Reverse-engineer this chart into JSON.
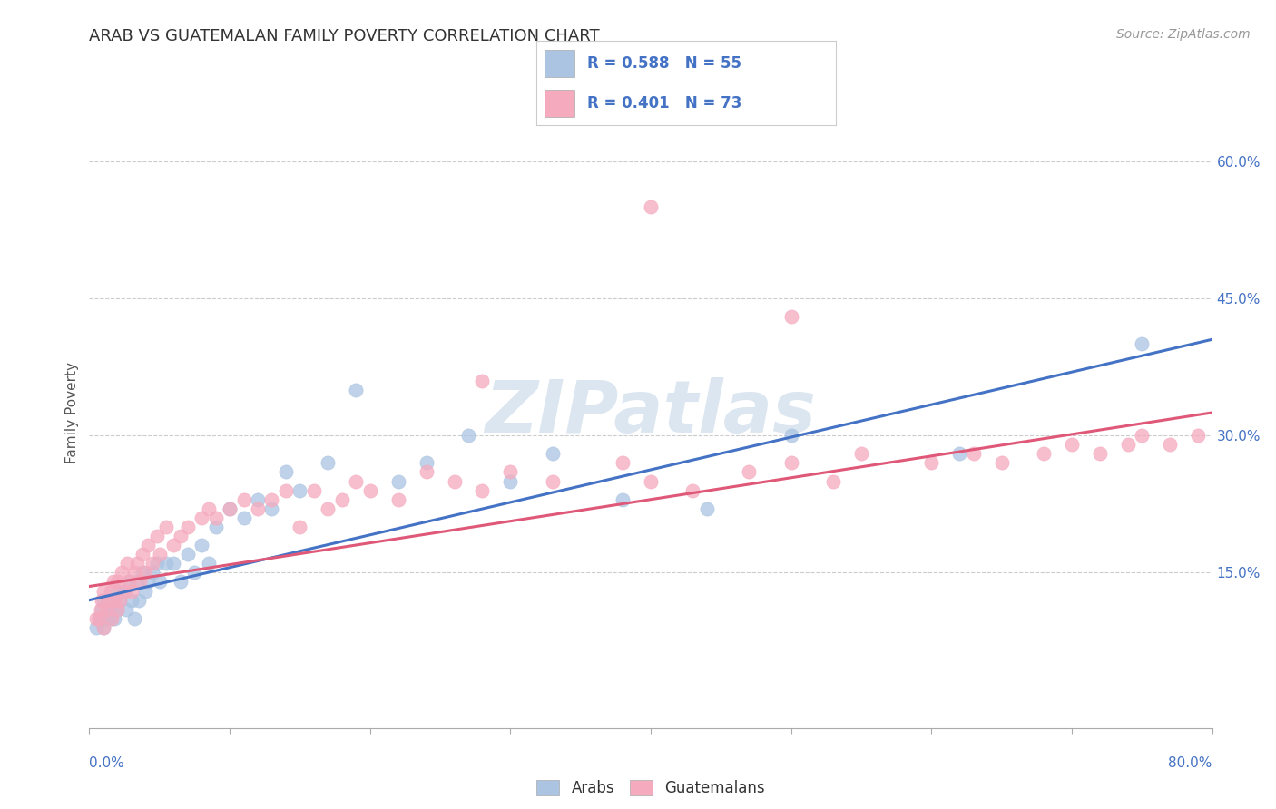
{
  "title": "ARAB VS GUATEMALAN FAMILY POVERTY CORRELATION CHART",
  "source": "Source: ZipAtlas.com",
  "ylabel": "Family Poverty",
  "ytick_labels": [
    "15.0%",
    "30.0%",
    "45.0%",
    "60.0%"
  ],
  "ytick_positions": [
    0.15,
    0.3,
    0.45,
    0.6
  ],
  "xlim": [
    0.0,
    0.8
  ],
  "ylim": [
    -0.02,
    0.67
  ],
  "arab_color": "#aac4e2",
  "guatemalan_color": "#f5aabe",
  "arab_line_color": "#4472c4",
  "guatemalan_line_color": "#e05878",
  "arab_R": 0.588,
  "arab_N": 55,
  "guatemalan_R": 0.401,
  "guatemalan_N": 73,
  "legend_color": "#4472c4",
  "watermark_color": "#dce6f0",
  "arab_line_x0": 0.0,
  "arab_line_y0": 0.12,
  "arab_line_x1": 0.8,
  "arab_line_y1": 0.405,
  "guat_line_x0": 0.0,
  "guat_line_y0": 0.135,
  "guat_line_x1": 0.8,
  "guat_line_y1": 0.325,
  "arab_x": [
    0.005,
    0.007,
    0.008,
    0.009,
    0.01,
    0.01,
    0.01,
    0.012,
    0.013,
    0.015,
    0.016,
    0.017,
    0.018,
    0.02,
    0.02,
    0.022,
    0.025,
    0.026,
    0.028,
    0.03,
    0.032,
    0.034,
    0.035,
    0.038,
    0.04,
    0.042,
    0.045,
    0.048,
    0.05,
    0.055,
    0.06,
    0.065,
    0.07,
    0.075,
    0.08,
    0.085,
    0.09,
    0.1,
    0.11,
    0.12,
    0.13,
    0.14,
    0.15,
    0.17,
    0.19,
    0.22,
    0.24,
    0.27,
    0.3,
    0.33,
    0.38,
    0.44,
    0.5,
    0.62,
    0.75
  ],
  "arab_y": [
    0.09,
    0.1,
    0.1,
    0.11,
    0.09,
    0.1,
    0.12,
    0.1,
    0.11,
    0.1,
    0.11,
    0.12,
    0.1,
    0.11,
    0.13,
    0.12,
    0.13,
    0.11,
    0.14,
    0.12,
    0.1,
    0.14,
    0.12,
    0.15,
    0.13,
    0.14,
    0.15,
    0.16,
    0.14,
    0.16,
    0.16,
    0.14,
    0.17,
    0.15,
    0.18,
    0.16,
    0.2,
    0.22,
    0.21,
    0.23,
    0.22,
    0.26,
    0.24,
    0.27,
    0.35,
    0.25,
    0.27,
    0.3,
    0.25,
    0.28,
    0.23,
    0.22,
    0.3,
    0.28,
    0.4
  ],
  "guat_x": [
    0.005,
    0.007,
    0.008,
    0.009,
    0.01,
    0.01,
    0.012,
    0.013,
    0.015,
    0.016,
    0.017,
    0.018,
    0.02,
    0.02,
    0.022,
    0.023,
    0.025,
    0.027,
    0.028,
    0.03,
    0.032,
    0.034,
    0.036,
    0.038,
    0.04,
    0.042,
    0.045,
    0.048,
    0.05,
    0.055,
    0.06,
    0.065,
    0.07,
    0.08,
    0.085,
    0.09,
    0.1,
    0.11,
    0.12,
    0.13,
    0.14,
    0.15,
    0.16,
    0.17,
    0.18,
    0.19,
    0.2,
    0.22,
    0.24,
    0.26,
    0.28,
    0.3,
    0.33,
    0.38,
    0.4,
    0.43,
    0.47,
    0.5,
    0.53,
    0.55,
    0.6,
    0.63,
    0.65,
    0.68,
    0.7,
    0.72,
    0.74,
    0.75,
    0.77,
    0.79,
    0.5,
    0.28,
    0.4
  ],
  "guat_y": [
    0.1,
    0.1,
    0.11,
    0.12,
    0.09,
    0.13,
    0.11,
    0.12,
    0.13,
    0.1,
    0.14,
    0.12,
    0.11,
    0.14,
    0.12,
    0.15,
    0.13,
    0.16,
    0.14,
    0.13,
    0.15,
    0.16,
    0.14,
    0.17,
    0.15,
    0.18,
    0.16,
    0.19,
    0.17,
    0.2,
    0.18,
    0.19,
    0.2,
    0.21,
    0.22,
    0.21,
    0.22,
    0.23,
    0.22,
    0.23,
    0.24,
    0.2,
    0.24,
    0.22,
    0.23,
    0.25,
    0.24,
    0.23,
    0.26,
    0.25,
    0.24,
    0.26,
    0.25,
    0.27,
    0.25,
    0.24,
    0.26,
    0.27,
    0.25,
    0.28,
    0.27,
    0.28,
    0.27,
    0.28,
    0.29,
    0.28,
    0.29,
    0.3,
    0.29,
    0.3,
    0.43,
    0.36,
    0.55
  ]
}
